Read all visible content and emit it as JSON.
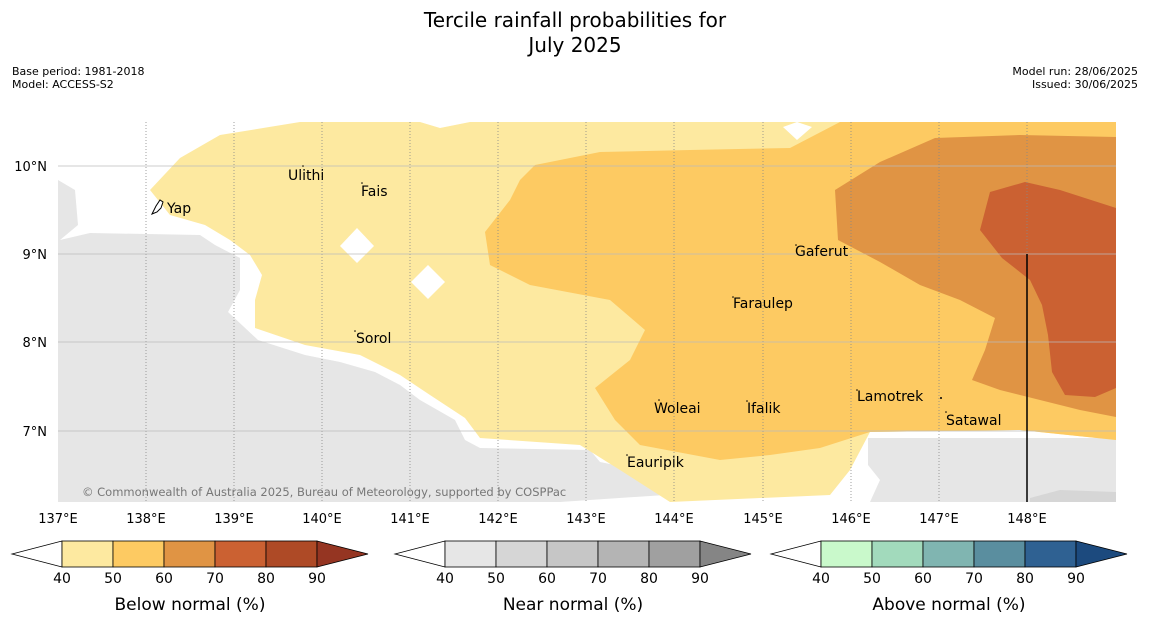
{
  "title_line1": "Tercile rainfall probabilities for",
  "title_line2": "July 2025",
  "meta_left": [
    "Base period: 1981-2018",
    "Model: ACCESS-S2"
  ],
  "meta_right": [
    "Model run: 28/06/2025",
    "Issued: 30/06/2025"
  ],
  "copyright": "© Commonwealth of Australia 2025, Bureau of Meteorology, supported by COSPPac",
  "lon_ticks": [
    "137°E",
    "138°E",
    "139°E",
    "140°E",
    "141°E",
    "142°E",
    "143°E",
    "144°E",
    "145°E",
    "146°E",
    "147°E",
    "148°E"
  ],
  "lat_ticks": [
    "10°N",
    "9°N",
    "8°N",
    "7°N"
  ],
  "places": [
    {
      "name": "Ulithi"
    },
    {
      "name": "Fais"
    },
    {
      "name": "Yap"
    },
    {
      "name": "Gaferut"
    },
    {
      "name": "Faraulep"
    },
    {
      "name": "Sorol"
    },
    {
      "name": "Woleai"
    },
    {
      "name": "Ifalik"
    },
    {
      "name": "Lamotrek"
    },
    {
      "name": "Satawal"
    },
    {
      "name": "Eauripik"
    }
  ],
  "colorbars": [
    {
      "label": "Below normal (%)",
      "ticks": [
        "40",
        "50",
        "60",
        "70",
        "80",
        "90"
      ],
      "colors": [
        "#fde9a0",
        "#fdca62",
        "#e09444",
        "#cb6132",
        "#ae4a26",
        "#953522"
      ]
    },
    {
      "label": "Near normal (%)",
      "ticks": [
        "40",
        "50",
        "60",
        "70",
        "80",
        "90"
      ],
      "colors": [
        "#e6e6e6",
        "#d6d6d6",
        "#c6c6c6",
        "#b4b4b4",
        "#a0a0a0",
        "#858585"
      ]
    },
    {
      "label": "Above normal (%)",
      "ticks": [
        "40",
        "50",
        "60",
        "70",
        "80",
        "90"
      ],
      "colors": [
        "#c9f9cb",
        "#a2dabc",
        "#80b5b1",
        "#5a8e9f",
        "#2f6192",
        "#1c4a7e"
      ]
    }
  ]
}
